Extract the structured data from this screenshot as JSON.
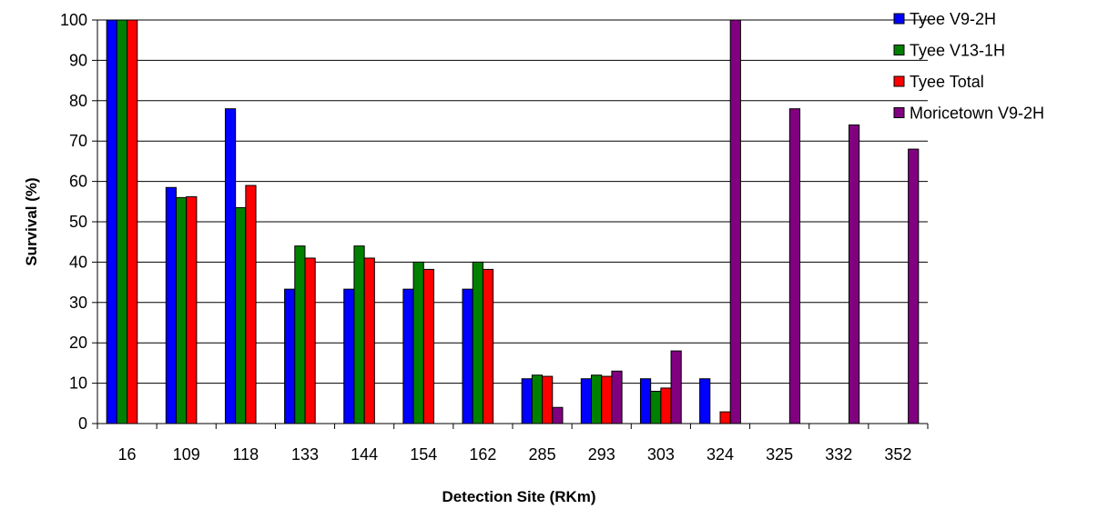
{
  "chart_data": {
    "type": "bar",
    "title": "",
    "xlabel": "Detection Site (RKm)",
    "ylabel": "Survival (%)",
    "ylim": [
      0,
      100
    ],
    "yticks": [
      0,
      10,
      20,
      30,
      40,
      50,
      60,
      70,
      80,
      90,
      100
    ],
    "grid": true,
    "legend_position": "right",
    "categories": [
      "16",
      "109",
      "118",
      "133",
      "144",
      "154",
      "162",
      "285",
      "293",
      "303",
      "324",
      "325",
      "332",
      "352"
    ],
    "series": [
      {
        "name": "Tyee V9-2H",
        "color": "#0000ff",
        "values": [
          100,
          58.5,
          78,
          33.3,
          33.3,
          33.3,
          33.3,
          11.1,
          11.1,
          11.1,
          11.1,
          null,
          null,
          null
        ]
      },
      {
        "name": "Tyee V13-1H",
        "color": "#008000",
        "values": [
          100,
          56,
          53.5,
          44,
          44,
          40,
          40,
          12,
          12,
          8,
          null,
          null,
          null,
          null
        ]
      },
      {
        "name": "Tyee Total",
        "color": "#ff0000",
        "values": [
          100,
          56.2,
          59,
          41,
          41,
          38.2,
          38.2,
          11.7,
          11.7,
          8.8,
          2.9,
          null,
          null,
          null
        ]
      },
      {
        "name": "Moricetown V9-2H",
        "color": "#800080",
        "values": [
          null,
          null,
          null,
          null,
          null,
          null,
          null,
          4,
          13,
          18,
          100,
          78,
          74,
          68
        ]
      }
    ]
  }
}
